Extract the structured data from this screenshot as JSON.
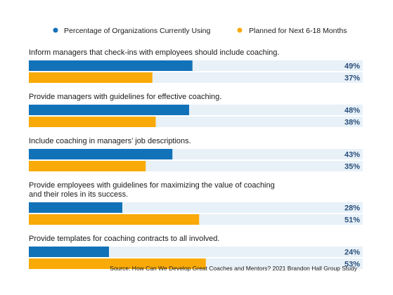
{
  "chart_data": {
    "type": "bar",
    "orientation": "horizontal",
    "xlim": [
      0,
      100
    ],
    "legend_position": "top",
    "grid": false,
    "series": [
      {
        "name": "Percentage of Organizations Currently Using",
        "color": "#1272b8",
        "values": [
          49,
          48,
          43,
          28,
          24
        ]
      },
      {
        "name": "Planned for Next 6-18 Months",
        "color": "#f9aa08",
        "values": [
          37,
          38,
          35,
          51,
          53
        ]
      }
    ],
    "categories": [
      [
        "Inform managers that check-ins with employees should include coaching."
      ],
      [
        "Provide managers with guidelines for effective coaching."
      ],
      [
        "Include coaching in managers’ job descriptions."
      ],
      [
        "Provide employees with guidelines for maximizing the value of coaching",
        "and their roles in its success."
      ],
      [
        "Provide templates for coaching contracts to all involved."
      ]
    ],
    "value_labels": [
      [
        "49%",
        "37%"
      ],
      [
        "48%",
        "38%"
      ],
      [
        "43%",
        "35%"
      ],
      [
        "28%",
        "51%"
      ],
      [
        "24%",
        "53%"
      ]
    ],
    "track_color": "#e8f1f8",
    "source": "Source: How Can We Develop Great Coaches and Mentors? 2021 Brandon Hall Group Study"
  }
}
